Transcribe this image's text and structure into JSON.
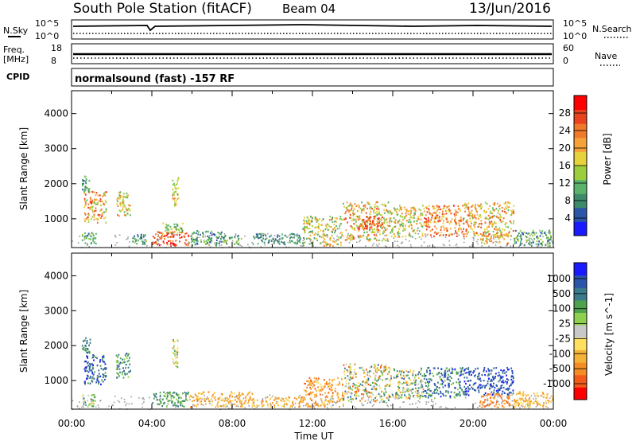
{
  "header": {
    "station": "South Pole Station (fitACF)",
    "beam": "Beam 04",
    "date": "13/Jun/2016"
  },
  "summary": {
    "nsky_label": "N.Sky",
    "nsky_ticks": [
      "10^5",
      "10^0"
    ],
    "nsearch_label": "N.Search",
    "nsearch_ticks": [
      "10^5",
      "10^0"
    ],
    "freq_label": "Freq.",
    "freq_unit": "[MHz]",
    "freq_ticks": [
      "18",
      "8"
    ],
    "nave_label": "Nave",
    "nave_ticks": [
      "60",
      "0"
    ],
    "cpid_label": "CPID",
    "cpid_value": "normalsound (fast) -157 RF"
  },
  "colors": {
    "power": [
      "#1a1aff",
      "#2b55a8",
      "#3d8a6a",
      "#5bb36b",
      "#9ccd3c",
      "#e6d23a",
      "#f5a23a",
      "#f07a2a",
      "#e8431f",
      "#ff0000"
    ],
    "velocity": [
      "#ff0000",
      "#f25a1c",
      "#f38d25",
      "#f5b33a",
      "#ffdf60",
      "#c8c8c8",
      "#8fd14f",
      "#4ea24d",
      "#3a7a8a",
      "#2b55a8",
      "#1a1aff"
    ],
    "ground": "#9a9a9a"
  },
  "chart_data": [
    {
      "type": "heatmap",
      "name": "power-panel",
      "ylabel": "Slant Range [km]",
      "yticks": [
        "1000",
        "2000",
        "3000",
        "4000"
      ],
      "ylim": [
        180,
        4650
      ],
      "xticks": [
        "00:00",
        "04:00",
        "08:00",
        "12:00",
        "16:00",
        "20:00",
        "00:00"
      ],
      "xlim": [
        0,
        24
      ],
      "colorbar": {
        "label": "Power [dB]",
        "ticks": [
          "4",
          "8",
          "12",
          "16",
          "20",
          "24",
          "28"
        ],
        "range": [
          0,
          32
        ]
      },
      "patches": [
        {
          "t": [
            0.5,
            1.2
          ],
          "r": [
            300,
            650
          ],
          "v": [
            4,
            14
          ]
        },
        {
          "t": [
            0.6,
            1.7
          ],
          "r": [
            900,
            1800
          ],
          "v": [
            12,
            30
          ]
        },
        {
          "t": [
            0.5,
            0.9
          ],
          "r": [
            1800,
            2250
          ],
          "v": [
            6,
            14
          ]
        },
        {
          "t": [
            2.2,
            2.9
          ],
          "r": [
            1100,
            1800
          ],
          "v": [
            12,
            24
          ]
        },
        {
          "t": [
            3.0,
            3.7
          ],
          "r": [
            300,
            600
          ],
          "v": [
            4,
            14
          ]
        },
        {
          "t": [
            4.0,
            5.8
          ],
          "r": [
            250,
            650
          ],
          "v": [
            22,
            31
          ]
        },
        {
          "t": [
            4.5,
            5.5
          ],
          "r": [
            600,
            900
          ],
          "v": [
            8,
            18
          ]
        },
        {
          "t": [
            5.0,
            5.3
          ],
          "r": [
            1400,
            2200
          ],
          "v": [
            12,
            24
          ]
        },
        {
          "t": [
            5.8,
            7.5
          ],
          "r": [
            250,
            700
          ],
          "v": [
            4,
            14
          ]
        },
        {
          "t": [
            7.5,
            8.5
          ],
          "r": [
            300,
            550
          ],
          "v": [
            6,
            18
          ]
        },
        {
          "t": [
            9.0,
            11.5
          ],
          "r": [
            300,
            600
          ],
          "v": [
            4,
            12
          ]
        },
        {
          "t": [
            11.5,
            13.5
          ],
          "r": [
            250,
            1100
          ],
          "v": [
            8,
            24
          ]
        },
        {
          "t": [
            13.5,
            15.8
          ],
          "r": [
            400,
            1500
          ],
          "v": [
            10,
            28
          ]
        },
        {
          "t": [
            14.2,
            15.5
          ],
          "r": [
            700,
            1100
          ],
          "v": [
            18,
            30
          ]
        },
        {
          "t": [
            15.8,
            17.5
          ],
          "r": [
            500,
            1400
          ],
          "v": [
            10,
            24
          ]
        },
        {
          "t": [
            17.5,
            19.5
          ],
          "r": [
            500,
            1400
          ],
          "v": [
            16,
            30
          ]
        },
        {
          "t": [
            19.5,
            22.0
          ],
          "r": [
            500,
            1500
          ],
          "v": [
            12,
            28
          ]
        },
        {
          "t": [
            20.3,
            21.8
          ],
          "r": [
            300,
            600
          ],
          "v": [
            14,
            26
          ]
        },
        {
          "t": [
            22.0,
            24.0
          ],
          "r": [
            250,
            700
          ],
          "v": [
            4,
            16
          ]
        }
      ]
    },
    {
      "type": "heatmap",
      "name": "velocity-panel",
      "ylabel": "Slant Range [km]",
      "yticks": [
        "1000",
        "2000",
        "3000",
        "4000"
      ],
      "ylim": [
        180,
        4650
      ],
      "xticks": [
        "00:00",
        "04:00",
        "08:00",
        "12:00",
        "16:00",
        "20:00",
        "00:00"
      ],
      "xlim": [
        0,
        24
      ],
      "xlabel": "Time UT",
      "colorbar": {
        "label": "Velocity [m s^-1]",
        "ticks": [
          "1000",
          "500",
          "100",
          "25",
          "-25",
          "-100",
          "-500",
          "-1000"
        ]
      },
      "patches": [
        {
          "t": [
            0.5,
            1.2
          ],
          "r": [
            250,
            650
          ],
          "v": [
            4,
            8
          ]
        },
        {
          "t": [
            0.6,
            1.7
          ],
          "r": [
            900,
            1800
          ],
          "v": [
            7,
            10
          ]
        },
        {
          "t": [
            0.5,
            0.9
          ],
          "r": [
            1800,
            2250
          ],
          "v": [
            7,
            9
          ]
        },
        {
          "t": [
            2.2,
            2.9
          ],
          "r": [
            1100,
            1800
          ],
          "v": [
            6,
            9
          ]
        },
        {
          "t": [
            4.0,
            5.8
          ],
          "r": [
            250,
            700
          ],
          "v": [
            6,
            8
          ]
        },
        {
          "t": [
            5.0,
            5.3
          ],
          "r": [
            1400,
            2200
          ],
          "v": [
            3,
            7
          ]
        },
        {
          "t": [
            5.8,
            9.0
          ],
          "r": [
            250,
            700
          ],
          "v": [
            2,
            4
          ]
        },
        {
          "t": [
            9.0,
            11.5
          ],
          "r": [
            250,
            550
          ],
          "v": [
            2,
            4
          ]
        },
        {
          "t": [
            11.5,
            13.5
          ],
          "r": [
            250,
            1100
          ],
          "v": [
            1,
            4
          ]
        },
        {
          "t": [
            13.5,
            15.8
          ],
          "r": [
            400,
            1500
          ],
          "v": [
            1,
            9
          ]
        },
        {
          "t": [
            15.8,
            17.5
          ],
          "r": [
            500,
            1400
          ],
          "v": [
            2,
            9
          ]
        },
        {
          "t": [
            17.5,
            19.5
          ],
          "r": [
            500,
            1400
          ],
          "v": [
            6,
            10
          ]
        },
        {
          "t": [
            19.5,
            22.0
          ],
          "r": [
            600,
            1400
          ],
          "v": [
            8,
            10
          ]
        },
        {
          "t": [
            20.3,
            21.8
          ],
          "r": [
            250,
            650
          ],
          "v": [
            1,
            3
          ]
        },
        {
          "t": [
            22.0,
            24.0
          ],
          "r": [
            250,
            700
          ],
          "v": [
            2,
            4
          ]
        }
      ]
    }
  ]
}
